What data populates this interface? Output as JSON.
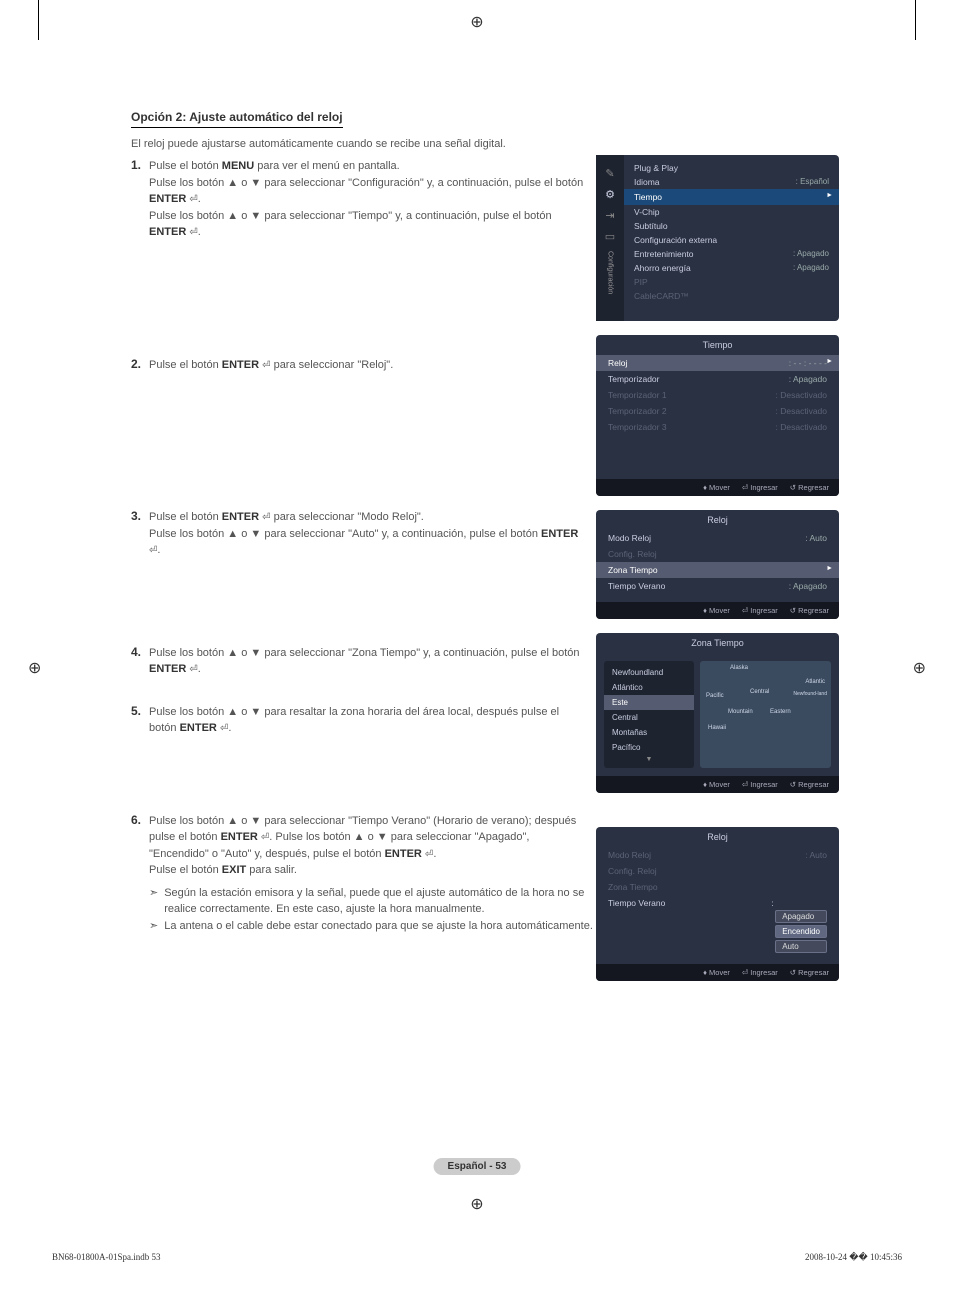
{
  "heading": "Opción 2: Ajuste automático del reloj",
  "intro": "El reloj puede ajustarse automáticamente cuando se recibe una señal digital.",
  "steps": {
    "s1": {
      "n": "1.",
      "l1a": "Pulse el botón ",
      "l1b": "MENU",
      "l1c": " para ver el menú en pantalla.",
      "l2a": "Pulse los botón ▲ o ▼ para seleccionar \"Configuración\" y, a continuación, pulse el botón ",
      "l2b": "ENTER",
      "l2c": ".",
      "l3a": "Pulse los botón ▲ o ▼ para seleccionar \"Tiempo\" y, a continuación, pulse el botón ",
      "l3b": "ENTER",
      "l3c": "."
    },
    "s2": {
      "n": "2.",
      "l1a": "Pulse el botón ",
      "l1b": "ENTER",
      "l1c": " para seleccionar \"Reloj\"."
    },
    "s3": {
      "n": "3.",
      "l1a": "Pulse el botón ",
      "l1b": "ENTER",
      "l1c": " para seleccionar \"Modo Reloj\".",
      "l2a": "Pulse los botón ▲ o ▼ para seleccionar \"Auto\" y, a continuación, pulse el botón ",
      "l2b": "ENTER",
      "l2c": "."
    },
    "s4": {
      "n": "4.",
      "l1a": "Pulse los botón ▲ o ▼ para seleccionar \"Zona Tiempo\" y, a continuación, pulse el botón ",
      "l1b": "ENTER",
      "l1c": "."
    },
    "s5": {
      "n": "5.",
      "l1a": "Pulse los botón ▲ o ▼ para resaltar la zona horaria del área local, después pulse el botón ",
      "l1b": "ENTER",
      "l1c": "."
    },
    "s6": {
      "n": "6.",
      "l1a": "Pulse los botón ▲ o ▼ para seleccionar \"Tiempo Verano\" (Horario de verano); después pulse el botón ",
      "l1b": "ENTER",
      "l1c": ". Pulse los botón ▲ o ▼ para seleccionar \"Apagado\", \"Encendido\" o \"Auto\" y, después, pulse el botón ",
      "l1d": "ENTER",
      "l1e": ".",
      "l2a": "Pulse el botón ",
      "l2b": "EXIT",
      "l2c": " para salir."
    },
    "note1": "Según la estación emisora y la señal, puede que el ajuste automático de la hora no se realice correctamente. En este caso, ajuste la hora manualmente.",
    "note2": "La antena o el cable debe estar conectado para que se ajuste la hora automáticamente."
  },
  "config_menu": {
    "side_label": "Configuración",
    "rows": [
      {
        "lbl": "Plug & Play",
        "val": "",
        "cls": ""
      },
      {
        "lbl": "Idioma",
        "val": ": Español",
        "cls": ""
      },
      {
        "lbl": "Tiempo",
        "val": "",
        "cls": "hl"
      },
      {
        "lbl": "V-Chip",
        "val": "",
        "cls": ""
      },
      {
        "lbl": "Subtítulo",
        "val": "",
        "cls": ""
      },
      {
        "lbl": "Configuración externa",
        "val": "",
        "cls": ""
      },
      {
        "lbl": "Entretenimiento",
        "val": ": Apagado",
        "cls": ""
      },
      {
        "lbl": "Ahorro energía",
        "val": ": Apagado",
        "cls": ""
      },
      {
        "lbl": "PIP",
        "val": "",
        "cls": "dim"
      },
      {
        "lbl": "CableCARD™",
        "val": "",
        "cls": "dim"
      }
    ]
  },
  "tiempo_menu": {
    "title": "Tiempo",
    "rows": [
      {
        "lbl": "Reloj",
        "val": ": - - : - -  - -",
        "cls": "hl"
      },
      {
        "lbl": "Temporizador",
        "val": ": Apagado",
        "cls": ""
      },
      {
        "lbl": "Temporizador 1",
        "val": ": Desactivado",
        "cls": "dim"
      },
      {
        "lbl": "Temporizador 2",
        "val": ": Desactivado",
        "cls": "dim"
      },
      {
        "lbl": "Temporizador 3",
        "val": ": Desactivado",
        "cls": "dim"
      }
    ]
  },
  "reloj_menu": {
    "title": "Reloj",
    "rows": [
      {
        "lbl": "Modo Reloj",
        "val": ": Auto",
        "cls": ""
      },
      {
        "lbl": "Config. Reloj",
        "val": "",
        "cls": "dim"
      },
      {
        "lbl": "Zona Tiempo",
        "val": "",
        "cls": "hl"
      },
      {
        "lbl": "Tiempo Verano",
        "val": ": Apagado",
        "cls": ""
      }
    ]
  },
  "zona_menu": {
    "title": "Zona Tiempo",
    "list": [
      "Newfoundland",
      "Atlántico",
      "Este",
      "Central",
      "Montañas",
      "Pacífico"
    ],
    "hl_index": 2,
    "map": [
      "Alaska",
      "Pacific",
      "Mountain",
      "Central",
      "Eastern",
      "Atlantic",
      "Newfound-land",
      "Hawaii"
    ]
  },
  "verano_menu": {
    "title": "Reloj",
    "rows": [
      {
        "lbl": "Modo Reloj",
        "val": ": Auto",
        "cls": "dim"
      },
      {
        "lbl": "Config. Reloj",
        "val": "",
        "cls": "dim"
      },
      {
        "lbl": "Zona Tiempo",
        "val": "",
        "cls": "dim"
      }
    ],
    "verano_lbl": "Tiempo Verano",
    "options": [
      "Apagado",
      "Encendido",
      "Auto"
    ],
    "hl_index": 1
  },
  "footer": {
    "mover": "Mover",
    "ingresar": "Ingresar",
    "regresar": "Regresar"
  },
  "page_badge": "Español - 53",
  "doc_footer_left": "BN68-01800A-01Spa.indb   53",
  "doc_footer_right": "2008-10-24   �� 10:45:36",
  "colors": {
    "menu_bg": "#2a3142",
    "menu_dark": "#1e2330",
    "hl_blue": "#1b4a7a",
    "hl_gray": "#555b70",
    "dim": "#5c6278",
    "text": "#c9cde0",
    "footer_bar": "#14171f",
    "map_bg": "#3a4a5f"
  }
}
